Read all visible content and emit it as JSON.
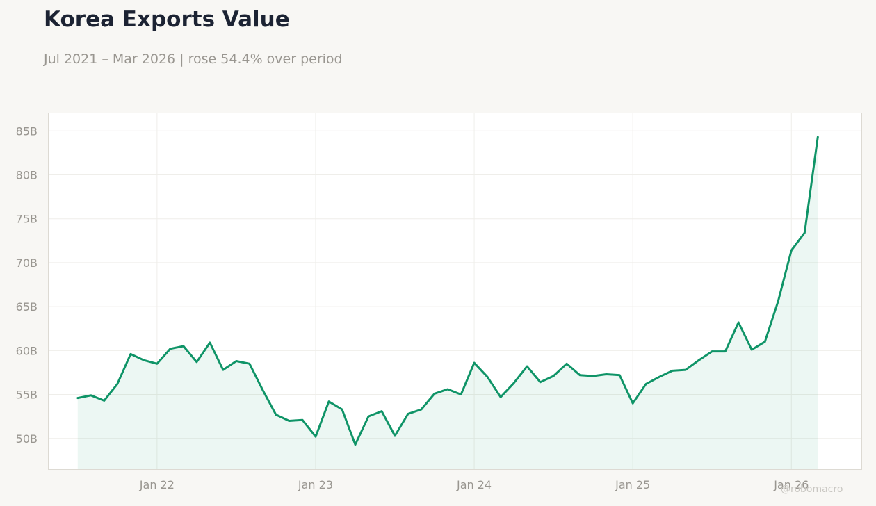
{
  "title": "Korea Exports Value",
  "subtitle": "Jul 2021 – Mar 2026 | rose 54.4% over period",
  "watermark": "@robomacro",
  "colors": {
    "line": "#0f9467",
    "fill": "#0f9467",
    "background": "#f8f7f4",
    "plot_background": "#ffffff"
  },
  "chart_data": {
    "type": "area",
    "title": "Korea Exports Value",
    "xlabel": "",
    "ylabel": "",
    "grid": true,
    "ylim": [
      46.5,
      87
    ],
    "xlim": [
      "2021-04-25",
      "2026-06-10"
    ],
    "y_ticks": [
      {
        "value": 50,
        "label": "50B"
      },
      {
        "value": 55,
        "label": "55B"
      },
      {
        "value": 60,
        "label": "60B"
      },
      {
        "value": 65,
        "label": "65B"
      },
      {
        "value": 70,
        "label": "70B"
      },
      {
        "value": 75,
        "label": "75B"
      },
      {
        "value": 80,
        "label": "80B"
      },
      {
        "value": 85,
        "label": "85B"
      }
    ],
    "x_ticks": [
      {
        "value": "2022-01",
        "label": "Jan 22"
      },
      {
        "value": "2023-01",
        "label": "Jan 23"
      },
      {
        "value": "2024-01",
        "label": "Jan 24"
      },
      {
        "value": "2025-01",
        "label": "Jan 25"
      },
      {
        "value": "2026-01",
        "label": "Jan 26"
      }
    ],
    "x": [
      "2021-07",
      "2021-08",
      "2021-09",
      "2021-10",
      "2021-11",
      "2021-12",
      "2022-01",
      "2022-02",
      "2022-03",
      "2022-04",
      "2022-05",
      "2022-06",
      "2022-07",
      "2022-08",
      "2022-09",
      "2022-10",
      "2022-11",
      "2022-12",
      "2023-01",
      "2023-02",
      "2023-03",
      "2023-04",
      "2023-05",
      "2023-06",
      "2023-07",
      "2023-08",
      "2023-09",
      "2023-10",
      "2023-11",
      "2023-12",
      "2024-01",
      "2024-02",
      "2024-03",
      "2024-04",
      "2024-05",
      "2024-06",
      "2024-07",
      "2024-08",
      "2024-09",
      "2024-10",
      "2024-11",
      "2024-12",
      "2025-01",
      "2025-02",
      "2025-03",
      "2025-04",
      "2025-05",
      "2025-06",
      "2025-07",
      "2025-08",
      "2025-09",
      "2025-10",
      "2025-11",
      "2025-12",
      "2026-01",
      "2026-02",
      "2026-03"
    ],
    "series": [
      {
        "values": [
          54.6,
          54.9,
          54.3,
          56.2,
          59.6,
          58.9,
          58.5,
          60.2,
          60.5,
          58.7,
          60.9,
          57.8,
          58.8,
          58.5,
          55.5,
          52.7,
          52.0,
          52.1,
          50.2,
          54.2,
          53.3,
          49.3,
          52.5,
          53.1,
          50.3,
          52.8,
          53.3,
          55.1,
          55.6,
          55.0,
          58.6,
          57.0,
          54.7,
          56.3,
          58.2,
          56.4,
          57.1,
          58.5,
          57.2,
          57.1,
          57.3,
          57.2,
          54.0,
          56.2,
          57.0,
          57.7,
          57.8,
          58.9,
          59.9,
          59.9,
          63.2,
          60.1,
          61.0,
          65.6,
          71.4,
          73.4,
          84.3
        ]
      }
    ]
  }
}
